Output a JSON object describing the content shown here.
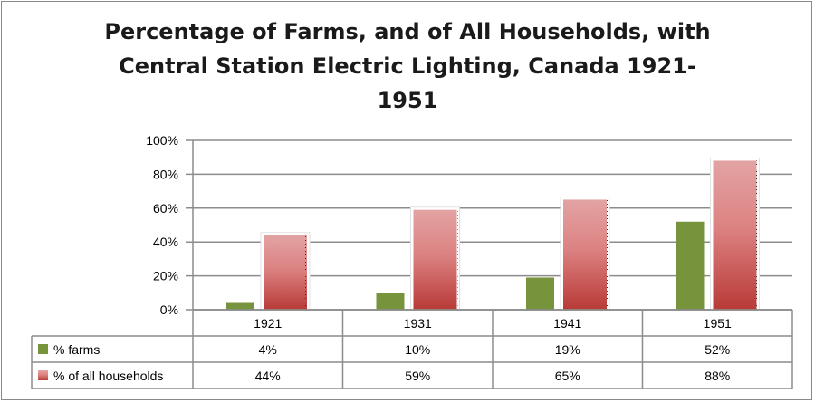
{
  "chart_data": {
    "type": "bar",
    "title": "Percentage of Farms, and of All Households, with Central Station Electric Lighting, Canada 1921-1951",
    "categories": [
      "1921",
      "1931",
      "1941",
      "1951"
    ],
    "series": [
      {
        "name": "% farms",
        "values": [
          4,
          10,
          19,
          52
        ],
        "labels": [
          "4%",
          "10%",
          "19%",
          "52%"
        ],
        "color": "#77933c"
      },
      {
        "name": "% of all households",
        "values": [
          44,
          59,
          65,
          88
        ],
        "labels": [
          "44%",
          "59%",
          "65%",
          "88%"
        ],
        "color": "#c0504d",
        "color_light": "#e6a0a0"
      }
    ],
    "yticks": [
      "0%",
      "20%",
      "40%",
      "60%",
      "80%",
      "100%"
    ],
    "ylim": [
      0,
      100
    ],
    "grid": true,
    "legend": "data-table"
  }
}
